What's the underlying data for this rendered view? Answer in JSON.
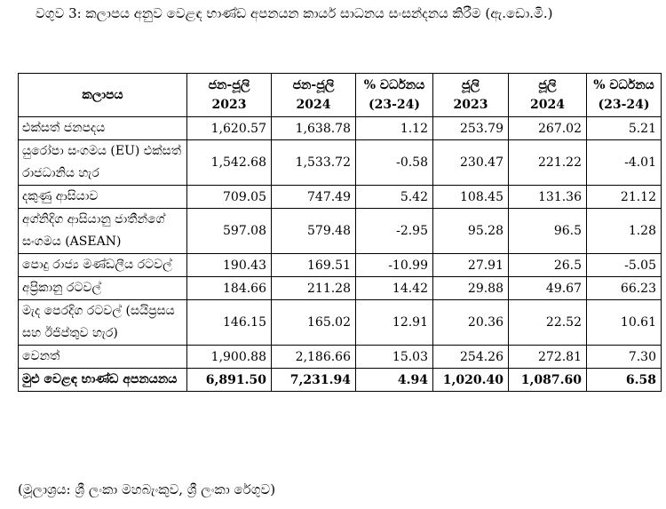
{
  "title": "වගුව 3: කලාපය අනුව වෙළඳ භාණ්ඩ අපනයන කාර්ය සාධනය සංසන්දනය කිරීම (ඇ.ඩො.මි.)",
  "table": {
    "headers": [
      {
        "line1": "කලාපය",
        "line2": ""
      },
      {
        "line1": "ජන-ජූලි",
        "line2": "2023"
      },
      {
        "line1": "ජන-ජූලි",
        "line2": "2024"
      },
      {
        "line1": "% වර්ධනය",
        "line2": "(23-24)"
      },
      {
        "line1": "ජූලි",
        "line2": "2023"
      },
      {
        "line1": "ජූලි",
        "line2": "2024"
      },
      {
        "line1": "% වර්ධනය",
        "line2": "(23-24)"
      }
    ],
    "rows": [
      {
        "region": "එක්සත් ජනපදය",
        "values": [
          "1,620.57",
          "1,638.78",
          "1.12",
          "253.79",
          "267.02",
          "5.21"
        ]
      },
      {
        "region": "යුරෝපා සංගමය (EU) එක්සත් රාජධානිය හැර",
        "values": [
          "1,542.68",
          "1,533.72",
          "-0.58",
          "230.47",
          "221.22",
          "-4.01"
        ]
      },
      {
        "region": "දකුණු ආසියාව",
        "values": [
          "709.05",
          "747.49",
          "5.42",
          "108.45",
          "131.36",
          "21.12"
        ]
      },
      {
        "region": "අග්නිදිග ආසියානු ජාතීන්ගේ සංගමය (ASEAN)",
        "values": [
          "597.08",
          "579.48",
          "-2.95",
          "95.28",
          "96.5",
          "1.28"
        ]
      },
      {
        "region": "පොදු රාජ්‍ය මණ්ඩලීය රටවල්",
        "values": [
          "190.43",
          "169.51",
          "-10.99",
          "27.91",
          "26.5",
          "-5.05"
        ]
      },
      {
        "region": "අප්‍රිකානු රටවල්",
        "values": [
          "184.66",
          "211.28",
          "14.42",
          "29.88",
          "49.67",
          "66.23"
        ]
      },
      {
        "region": "මැද පෙරදිග රටවල් (සයිප්‍රසය සහ ඊජිප්තුව හැර)",
        "values": [
          "146.15",
          "165.02",
          "12.91",
          "20.36",
          "22.52",
          "10.61"
        ]
      },
      {
        "region": "වෙනත්",
        "values": [
          "1,900.88",
          "2,186.66",
          "15.03",
          "254.26",
          "272.81",
          "7.30"
        ]
      }
    ],
    "total": {
      "region": "මුළු වෙළඳ භාණ්ඩ අපනයනය",
      "values": [
        "6,891.50",
        "7,231.94",
        "4.94",
        "1,020.40",
        "1,087.60",
        "6.58"
      ]
    }
  },
  "source": "(මූලාශ්‍රය: ශ්‍රී ලංකා මහබැංකුව, ශ්‍රී ලංකා රේගුව)"
}
